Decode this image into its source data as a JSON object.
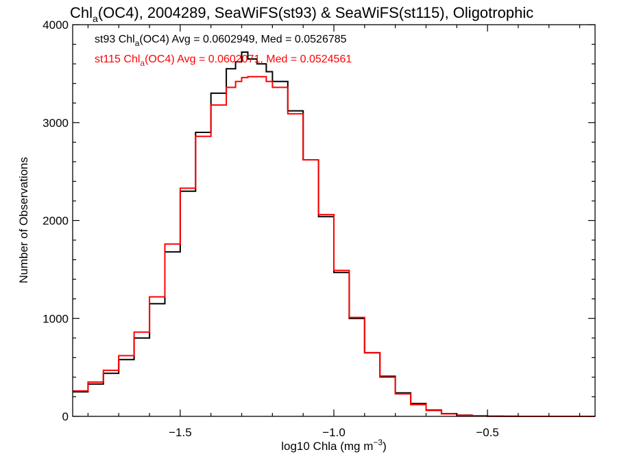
{
  "chart_data": {
    "type": "line",
    "step": true,
    "title": {
      "prefix": "Chl",
      "sub": "a",
      "suffix": "(OC4), 2004289, SeaWiFS(st93) & SeaWiFS(st115), Oligotrophic"
    },
    "xlabel": {
      "main": "log10 Chla (mg m",
      "sup": "−3",
      "end": ")"
    },
    "ylabel": "Number of Observations",
    "xlim": [
      -1.85,
      -0.15
    ],
    "ylim": [
      0,
      4000
    ],
    "x_ticks": [
      -1.5,
      -1.0,
      -0.5
    ],
    "x_tick_labels": [
      "−1.5",
      "−1.0",
      "−0.5"
    ],
    "y_ticks": [
      0,
      1000,
      2000,
      3000,
      4000
    ],
    "y_tick_labels": [
      "0",
      "1000",
      "2000",
      "3000",
      "4000"
    ],
    "grid": false,
    "annotations": [
      {
        "pre": "st93 Chl",
        "sub": "a",
        "post": "(OC4) Avg = 0.0602949, Med = 0.0526785",
        "color": "#000000"
      },
      {
        "pre": "st115 Chl",
        "sub": "a",
        "post": "(OC4) Avg = 0.0602071, Med = 0.0524561",
        "color": "#ff0000"
      }
    ],
    "series": [
      {
        "color": "#000000",
        "x": [
          -1.85,
          -1.8,
          -1.75,
          -1.7,
          -1.65,
          -1.6,
          -1.55,
          -1.5,
          -1.45,
          -1.4,
          -1.35,
          -1.32,
          -1.3,
          -1.28,
          -1.25,
          -1.22,
          -1.2,
          -1.15,
          -1.1,
          -1.05,
          -1.0,
          -0.95,
          -0.9,
          -0.85,
          -0.8,
          -0.75,
          -0.7,
          -0.65,
          -0.6,
          -0.55,
          -0.5,
          -0.45,
          -0.4,
          -0.3,
          -0.2,
          -0.15
        ],
        "y": [
          250,
          330,
          440,
          580,
          800,
          1150,
          1680,
          2300,
          2900,
          3300,
          3550,
          3620,
          3720,
          3650,
          3600,
          3520,
          3420,
          3120,
          2620,
          2040,
          1470,
          1000,
          650,
          410,
          240,
          130,
          65,
          28,
          12,
          5,
          2,
          1,
          0,
          0,
          0,
          0
        ]
      },
      {
        "color": "#ff0000",
        "x": [
          -1.85,
          -1.8,
          -1.75,
          -1.7,
          -1.65,
          -1.6,
          -1.55,
          -1.5,
          -1.45,
          -1.4,
          -1.35,
          -1.32,
          -1.3,
          -1.28,
          -1.25,
          -1.22,
          -1.2,
          -1.15,
          -1.1,
          -1.05,
          -1.0,
          -0.95,
          -0.9,
          -0.85,
          -0.8,
          -0.75,
          -0.7,
          -0.65,
          -0.6,
          -0.55,
          -0.5,
          -0.45,
          -0.4,
          -0.3,
          -0.2,
          -0.15
        ],
        "y": [
          260,
          350,
          470,
          620,
          860,
          1220,
          1760,
          2330,
          2860,
          3180,
          3360,
          3420,
          3460,
          3470,
          3470,
          3420,
          3360,
          3090,
          2620,
          2060,
          1490,
          1010,
          650,
          400,
          230,
          120,
          60,
          25,
          10,
          4,
          2,
          1,
          0,
          0,
          0,
          0
        ]
      }
    ]
  }
}
